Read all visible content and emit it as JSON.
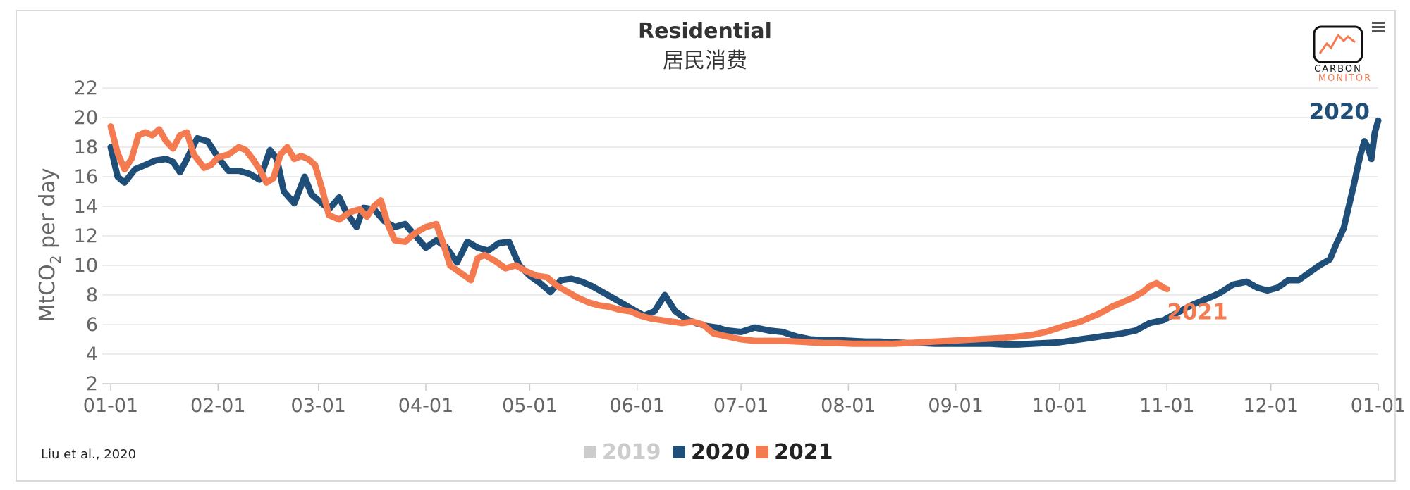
{
  "chart_data": {
    "type": "line",
    "title": "Residential",
    "subtitle": "居民消费",
    "ylabel_prefix": "MtCO",
    "ylabel_sub": "2",
    "ylabel_suffix": " per day",
    "ylim": [
      2,
      22
    ],
    "yticks": [
      2,
      4,
      6,
      8,
      10,
      12,
      14,
      16,
      18,
      20,
      22
    ],
    "xtick_labels": [
      "01-01",
      "02-01",
      "03-01",
      "04-01",
      "05-01",
      "06-01",
      "07-01",
      "08-01",
      "09-01",
      "10-01",
      "11-01",
      "12-01",
      "01-01"
    ],
    "xtick_days": [
      0,
      31,
      60,
      91,
      121,
      152,
      182,
      213,
      244,
      274,
      305,
      335,
      366
    ],
    "x_max_day": 366,
    "series": [
      {
        "name": "2019",
        "color": "#cccccc",
        "visible": false,
        "points": []
      },
      {
        "name": "2020",
        "color": "#1f4e79",
        "visible": true,
        "end_label": "2020",
        "points": [
          [
            0,
            18.0
          ],
          [
            2,
            16.0
          ],
          [
            4,
            15.6
          ],
          [
            7,
            16.5
          ],
          [
            10,
            16.8
          ],
          [
            13,
            17.1
          ],
          [
            16,
            17.2
          ],
          [
            18,
            17.0
          ],
          [
            20,
            16.3
          ],
          [
            22,
            17.2
          ],
          [
            25,
            18.6
          ],
          [
            28,
            18.4
          ],
          [
            31,
            17.3
          ],
          [
            34,
            16.4
          ],
          [
            37,
            16.4
          ],
          [
            40,
            16.2
          ],
          [
            43,
            15.8
          ],
          [
            46,
            17.8
          ],
          [
            48,
            17.2
          ],
          [
            50,
            15.0
          ],
          [
            53,
            14.2
          ],
          [
            56,
            16.0
          ],
          [
            58,
            14.8
          ],
          [
            61,
            14.2
          ],
          [
            63,
            13.8
          ],
          [
            66,
            14.6
          ],
          [
            68,
            13.6
          ],
          [
            71,
            12.6
          ],
          [
            73,
            13.9
          ],
          [
            76,
            13.8
          ],
          [
            79,
            13.0
          ],
          [
            82,
            12.6
          ],
          [
            85,
            12.8
          ],
          [
            88,
            12.0
          ],
          [
            91,
            11.2
          ],
          [
            94,
            11.7
          ],
          [
            97,
            11.2
          ],
          [
            100,
            10.2
          ],
          [
            103,
            11.6
          ],
          [
            106,
            11.2
          ],
          [
            109,
            11.0
          ],
          [
            112,
            11.5
          ],
          [
            115,
            11.6
          ],
          [
            118,
            10.0
          ],
          [
            121,
            9.3
          ],
          [
            124,
            8.8
          ],
          [
            127,
            8.2
          ],
          [
            130,
            9.0
          ],
          [
            133,
            9.1
          ],
          [
            136,
            8.9
          ],
          [
            139,
            8.6
          ],
          [
            142,
            8.2
          ],
          [
            145,
            7.8
          ],
          [
            148,
            7.4
          ],
          [
            151,
            7.0
          ],
          [
            154,
            6.6
          ],
          [
            157,
            6.9
          ],
          [
            160,
            8.0
          ],
          [
            163,
            6.9
          ],
          [
            166,
            6.4
          ],
          [
            169,
            6.1
          ],
          [
            172,
            5.9
          ],
          [
            175,
            5.8
          ],
          [
            178,
            5.6
          ],
          [
            182,
            5.5
          ],
          [
            186,
            5.8
          ],
          [
            190,
            5.6
          ],
          [
            194,
            5.5
          ],
          [
            198,
            5.2
          ],
          [
            202,
            5.0
          ],
          [
            206,
            4.95
          ],
          [
            210,
            4.95
          ],
          [
            214,
            4.9
          ],
          [
            218,
            4.85
          ],
          [
            222,
            4.85
          ],
          [
            226,
            4.8
          ],
          [
            230,
            4.75
          ],
          [
            234,
            4.75
          ],
          [
            238,
            4.7
          ],
          [
            242,
            4.7
          ],
          [
            246,
            4.7
          ],
          [
            250,
            4.7
          ],
          [
            254,
            4.7
          ],
          [
            258,
            4.65
          ],
          [
            262,
            4.65
          ],
          [
            266,
            4.7
          ],
          [
            270,
            4.75
          ],
          [
            274,
            4.8
          ],
          [
            277,
            4.9
          ],
          [
            280,
            5.0
          ],
          [
            283,
            5.1
          ],
          [
            286,
            5.2
          ],
          [
            289,
            5.3
          ],
          [
            292,
            5.4
          ],
          [
            296,
            5.6
          ],
          [
            300,
            6.1
          ],
          [
            304,
            6.3
          ],
          [
            308,
            6.8
          ],
          [
            312,
            7.3
          ],
          [
            316,
            7.7
          ],
          [
            320,
            8.1
          ],
          [
            324,
            8.7
          ],
          [
            328,
            8.9
          ],
          [
            331,
            8.5
          ],
          [
            334,
            8.3
          ],
          [
            337,
            8.5
          ],
          [
            340,
            9.0
          ],
          [
            343,
            9.0
          ],
          [
            346,
            9.5
          ],
          [
            349,
            10.0
          ],
          [
            352,
            10.4
          ],
          [
            354,
            11.5
          ],
          [
            356,
            12.5
          ],
          [
            357,
            13.5
          ],
          [
            358,
            14.5
          ],
          [
            359,
            15.5
          ],
          [
            360,
            16.6
          ],
          [
            361,
            17.6
          ],
          [
            362,
            18.4
          ],
          [
            363,
            18.0
          ],
          [
            364,
            17.2
          ],
          [
            365,
            19.0
          ],
          [
            366,
            19.8
          ]
        ]
      },
      {
        "name": "2021",
        "color": "#f47a4f",
        "visible": true,
        "end_label": "2021",
        "points": [
          [
            0,
            19.4
          ],
          [
            2,
            17.6
          ],
          [
            4,
            16.5
          ],
          [
            6,
            17.2
          ],
          [
            8,
            18.8
          ],
          [
            10,
            19.0
          ],
          [
            12,
            18.8
          ],
          [
            14,
            19.2
          ],
          [
            16,
            18.4
          ],
          [
            18,
            17.9
          ],
          [
            20,
            18.8
          ],
          [
            22,
            19.0
          ],
          [
            24,
            17.5
          ],
          [
            27,
            16.6
          ],
          [
            29,
            16.8
          ],
          [
            31,
            17.3
          ],
          [
            34,
            17.5
          ],
          [
            37,
            18.0
          ],
          [
            39,
            17.8
          ],
          [
            41,
            17.2
          ],
          [
            43,
            16.5
          ],
          [
            45,
            15.6
          ],
          [
            47,
            15.9
          ],
          [
            49,
            17.5
          ],
          [
            51,
            18.0
          ],
          [
            53,
            17.2
          ],
          [
            55,
            17.4
          ],
          [
            57,
            17.2
          ],
          [
            59,
            16.8
          ],
          [
            61,
            15.2
          ],
          [
            63,
            13.4
          ],
          [
            66,
            13.1
          ],
          [
            69,
            13.6
          ],
          [
            72,
            13.8
          ],
          [
            74,
            13.3
          ],
          [
            76,
            14.0
          ],
          [
            78,
            14.4
          ],
          [
            80,
            12.8
          ],
          [
            82,
            11.7
          ],
          [
            85,
            11.6
          ],
          [
            88,
            12.2
          ],
          [
            91,
            12.6
          ],
          [
            94,
            12.8
          ],
          [
            96,
            11.5
          ],
          [
            98,
            10.0
          ],
          [
            101,
            9.5
          ],
          [
            104,
            9.0
          ],
          [
            106,
            10.5
          ],
          [
            108,
            10.7
          ],
          [
            111,
            10.3
          ],
          [
            114,
            9.8
          ],
          [
            117,
            10.0
          ],
          [
            120,
            9.6
          ],
          [
            123,
            9.3
          ],
          [
            126,
            9.2
          ],
          [
            129,
            8.6
          ],
          [
            132,
            8.2
          ],
          [
            135,
            7.8
          ],
          [
            138,
            7.5
          ],
          [
            141,
            7.3
          ],
          [
            144,
            7.2
          ],
          [
            147,
            7.0
          ],
          [
            150,
            6.9
          ],
          [
            153,
            6.6
          ],
          [
            156,
            6.4
          ],
          [
            159,
            6.3
          ],
          [
            162,
            6.2
          ],
          [
            165,
            6.1
          ],
          [
            168,
            6.2
          ],
          [
            171,
            6.0
          ],
          [
            174,
            5.4
          ],
          [
            178,
            5.2
          ],
          [
            182,
            5.0
          ],
          [
            186,
            4.9
          ],
          [
            190,
            4.9
          ],
          [
            194,
            4.9
          ],
          [
            198,
            4.85
          ],
          [
            202,
            4.8
          ],
          [
            206,
            4.75
          ],
          [
            210,
            4.75
          ],
          [
            214,
            4.7
          ],
          [
            218,
            4.7
          ],
          [
            222,
            4.7
          ],
          [
            226,
            4.7
          ],
          [
            230,
            4.75
          ],
          [
            234,
            4.8
          ],
          [
            238,
            4.85
          ],
          [
            242,
            4.9
          ],
          [
            246,
            4.95
          ],
          [
            250,
            5.0
          ],
          [
            254,
            5.05
          ],
          [
            258,
            5.1
          ],
          [
            262,
            5.2
          ],
          [
            266,
            5.3
          ],
          [
            270,
            5.5
          ],
          [
            274,
            5.8
          ],
          [
            277,
            6.0
          ],
          [
            280,
            6.2
          ],
          [
            283,
            6.5
          ],
          [
            286,
            6.8
          ],
          [
            289,
            7.2
          ],
          [
            292,
            7.5
          ],
          [
            295,
            7.8
          ],
          [
            298,
            8.2
          ],
          [
            300,
            8.6
          ],
          [
            302,
            8.8
          ],
          [
            304,
            8.5
          ],
          [
            305,
            8.4
          ]
        ]
      }
    ]
  },
  "logo": {
    "line1": "CARBON",
    "line2": "MONITOR",
    "primary_color": "#111111",
    "accent_color": "#f47a4f"
  },
  "menu_icon": "hamburger-menu-icon",
  "citation": "Liu et al., 2020"
}
